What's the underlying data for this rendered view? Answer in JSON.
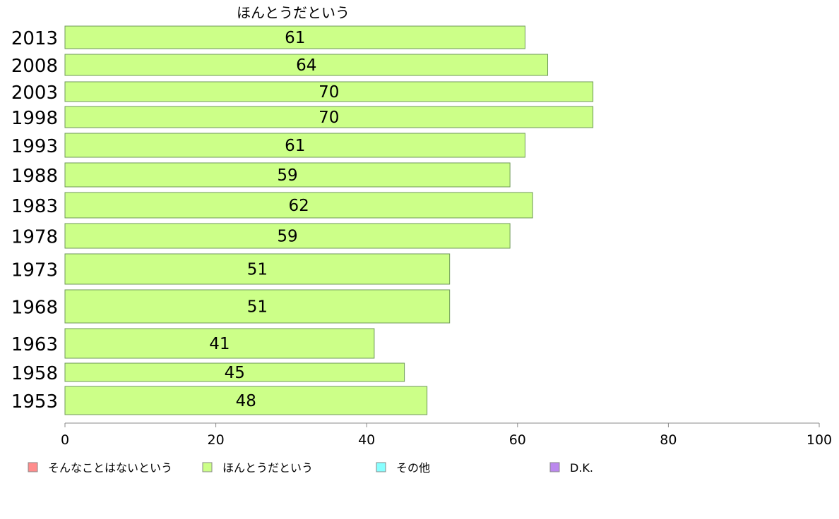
{
  "chart_data": {
    "type": "bar",
    "orientation": "horizontal",
    "title": "ほんとうだという",
    "categories": [
      "2013",
      "2008",
      "2003",
      "1998",
      "1993",
      "1988",
      "1983",
      "1978",
      "1973",
      "1968",
      "1963",
      "1958",
      "1953"
    ],
    "series": [
      {
        "name": "ほんとうだという",
        "values": [
          61,
          64,
          70,
          70,
          61,
          59,
          62,
          59,
          51,
          51,
          41,
          45,
          48
        ]
      }
    ],
    "xlim": [
      0,
      100
    ],
    "xticks": [
      0,
      20,
      40,
      60,
      80,
      100
    ],
    "grid": false,
    "legend_position": "bottom",
    "legend": [
      {
        "label": "そんなことはないという",
        "color": "#ff8c8c"
      },
      {
        "label": "ほんとうだという",
        "color": "#ccff88"
      },
      {
        "label": "その他",
        "color": "#88ffff"
      },
      {
        "label": "D.K.",
        "color": "#bb88ee"
      }
    ],
    "bar_color": "#ccff88"
  }
}
